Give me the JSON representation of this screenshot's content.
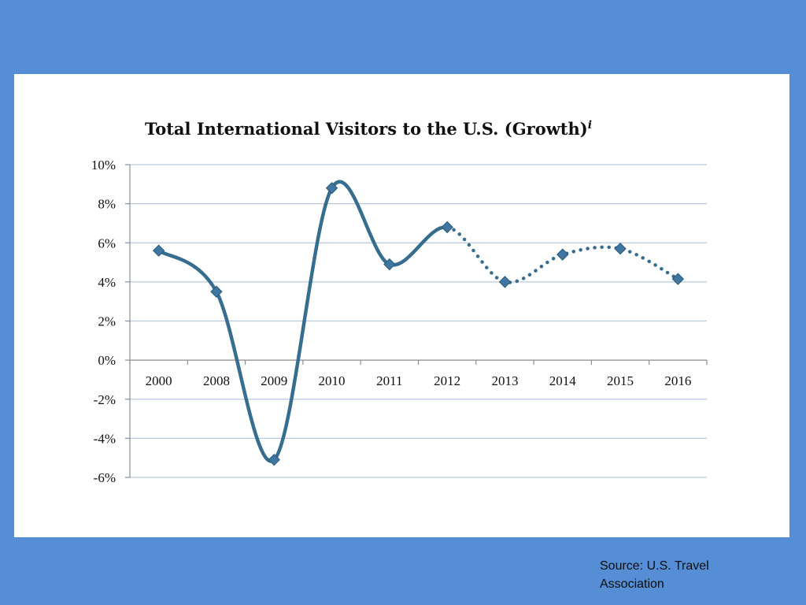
{
  "chart_data": {
    "type": "line",
    "title": "Total International Visitors to the U.S. (Growth)",
    "title_superscript": "i",
    "categories": [
      "2000",
      "2008",
      "2009",
      "2010",
      "2011",
      "2012",
      "2013",
      "2014",
      "2015",
      "2016"
    ],
    "series": [
      {
        "values": [
          5.6,
          3.5,
          -5.1,
          8.8,
          4.9,
          6.8,
          4.0,
          5.4,
          5.7,
          4.15
        ],
        "color": "#376e8f",
        "solid_through": "2012",
        "dotted_from": "2012"
      }
    ],
    "ylim": [
      -6,
      10
    ],
    "yticks": [
      -6,
      -4,
      -2,
      0,
      2,
      4,
      6,
      8,
      10
    ],
    "ytick_labels": [
      "-6%",
      "-4%",
      "-2%",
      "0%",
      "2%",
      "4%",
      "6%",
      "8%",
      "10%"
    ],
    "grid": true,
    "legend": "none",
    "marker": "diamond"
  },
  "source_note": "Source: U.S. Travel Association",
  "colors": {
    "background": "#558ed5",
    "panel": "#ffffff",
    "line": "#376e8f",
    "marker": "#3f77a1",
    "grid": "#b9c9dc"
  }
}
